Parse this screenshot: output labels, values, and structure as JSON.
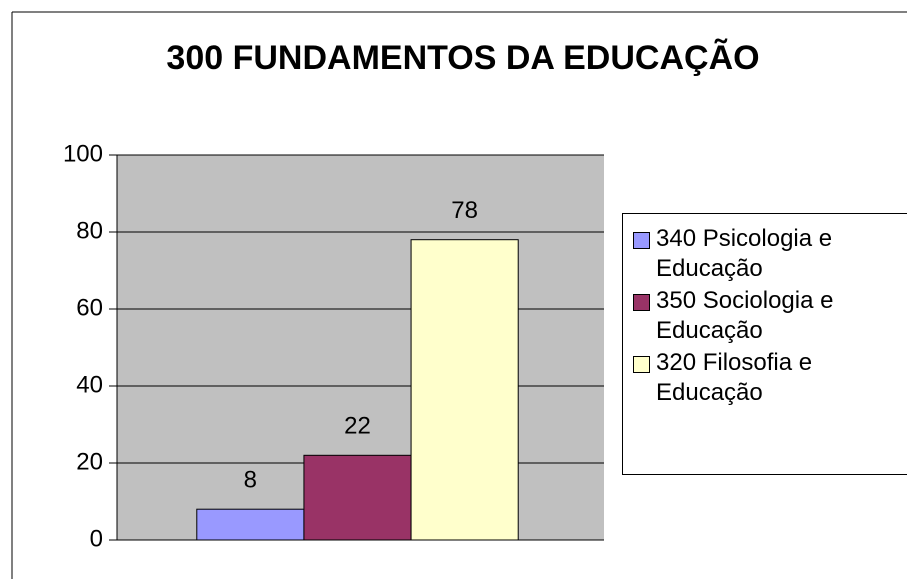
{
  "chart_data": {
    "type": "bar",
    "title": "300 FUNDAMENTOS DA EDUCAÇÃO",
    "categories": [
      null
    ],
    "series": [
      {
        "name": "340 Psicologia e Educação",
        "color": "#9999ff",
        "values": [
          8
        ]
      },
      {
        "name": "350 Sociologia e Educação",
        "color": "#993366",
        "values": [
          22
        ]
      },
      {
        "name": "320 Filosofia e Educação",
        "color": "#ffffcc",
        "values": [
          78
        ]
      }
    ],
    "ylim": [
      0,
      100
    ],
    "yticks": [
      0,
      20,
      40,
      60,
      80,
      100
    ],
    "grid": true,
    "plot_background": "#c0c0c0",
    "legend": "right",
    "data_labels": true
  }
}
